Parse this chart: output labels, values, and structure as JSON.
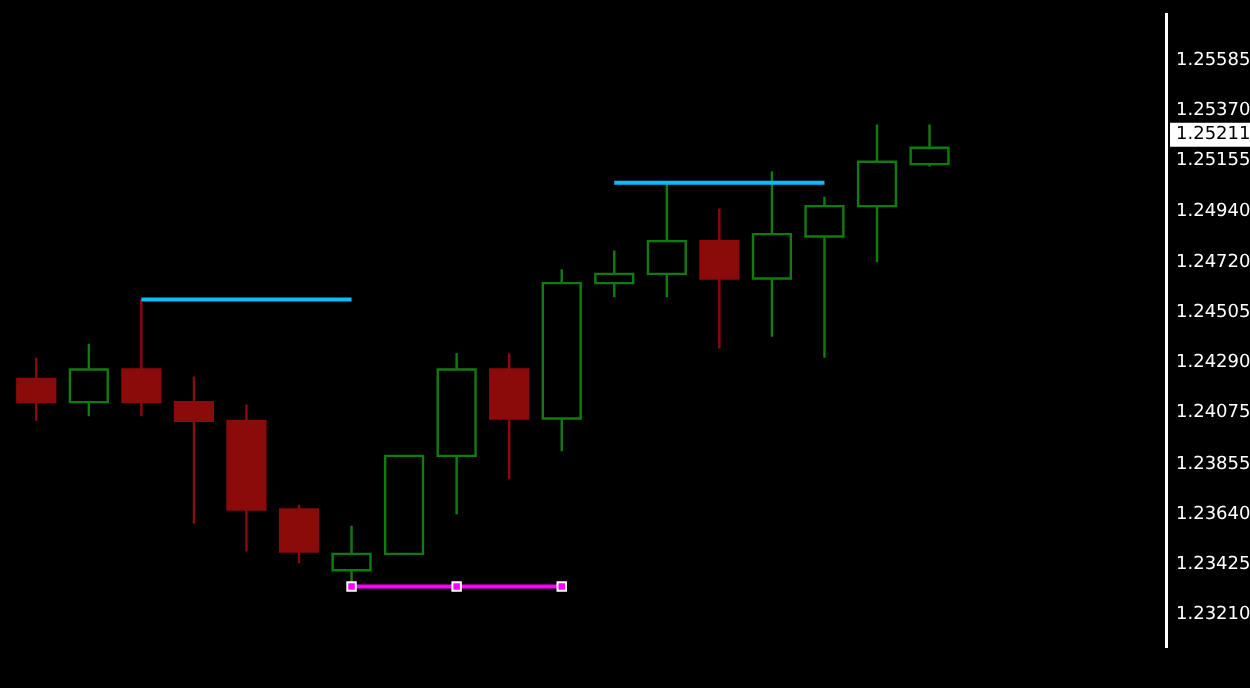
{
  "chart_data": {
    "type": "candlestick",
    "categories": [
      null,
      null,
      null,
      null,
      null,
      null,
      null,
      null,
      null,
      null,
      null,
      null,
      null,
      null,
      null,
      null,
      null,
      null,
      null,
      null,
      null,
      null
    ],
    "ohlc": [
      [
        1.2422,
        1.2431,
        1.2404,
        1.2412
      ],
      [
        1.2412,
        1.2437,
        1.2406,
        1.2426
      ],
      [
        1.2426,
        1.2456,
        1.2406,
        1.2412
      ],
      [
        1.2412,
        1.2423,
        1.236,
        1.2404
      ],
      [
        1.2404,
        1.2411,
        1.2348,
        1.2366
      ],
      [
        1.2366,
        1.2368,
        1.2343,
        1.2348
      ],
      [
        1.234,
        1.2359,
        1.2334,
        1.2347
      ],
      [
        1.2347,
        1.2389,
        1.2347,
        1.2389
      ],
      [
        1.2389,
        1.2433,
        1.2364,
        1.2426
      ],
      [
        1.2426,
        1.2433,
        1.2379,
        1.2405
      ],
      [
        1.2405,
        1.2469,
        1.2391,
        1.2463
      ],
      [
        1.2463,
        1.2477,
        1.2457,
        1.2467
      ],
      [
        1.2467,
        1.2506,
        1.2457,
        1.2481
      ],
      [
        1.2481,
        1.2495,
        1.2435,
        1.2465
      ],
      [
        1.2465,
        1.2511,
        1.244,
        1.2484
      ],
      [
        1.2483,
        1.25,
        1.2431,
        1.2496
      ],
      [
        1.2496,
        1.2531,
        1.2472,
        1.2515
      ],
      [
        1.2514,
        1.2531,
        1.2513,
        1.2521
      ],
      null,
      null,
      null,
      null
    ],
    "colors": [
      "#8b0a0a",
      "#107c10",
      "#8b0a0a",
      "#8b0a0a",
      "#8b0a0a",
      "#8b0a0a",
      "#107c10",
      "#107c10",
      "#107c10",
      "#8b0a0a",
      "#107c10",
      "#107c10",
      "#107c10",
      "#8b0a0a",
      "#107c10",
      "#107c10",
      "#107c10",
      "#107c10",
      null,
      null,
      null,
      null
    ],
    "series": [
      {
        "type": "line",
        "color": "#00bfff",
        "marker": "none",
        "values": [
          null,
          null,
          1.2456,
          1.2456,
          1.2456,
          1.2456,
          1.2456,
          null,
          null,
          null,
          null,
          null,
          null,
          null,
          null,
          null,
          null,
          null,
          null,
          null,
          null,
          null
        ]
      },
      {
        "type": "line",
        "color": "#00bfff",
        "marker": "none",
        "values": [
          null,
          null,
          null,
          null,
          null,
          null,
          null,
          null,
          null,
          null,
          null,
          1.2506,
          1.2506,
          1.2506,
          1.2506,
          1.2506,
          null,
          null,
          null,
          null,
          null,
          null
        ]
      },
      {
        "type": "line",
        "color": "#ff00ff",
        "marker": "square",
        "values": [
          null,
          null,
          null,
          null,
          null,
          null,
          1.2333,
          null,
          1.2333,
          null,
          1.2333,
          null,
          null,
          null,
          null,
          null,
          null,
          null,
          null,
          null,
          null,
          null
        ]
      }
    ],
    "ylim": [
      1.2307,
      1.2578
    ],
    "yticks": [
      {
        "value": 1.2321,
        "label": "1.23210"
      },
      {
        "value": 1.23425,
        "label": "1.23425"
      },
      {
        "value": 1.2364,
        "label": "1.23640"
      },
      {
        "value": 1.23855,
        "label": "1.23855"
      },
      {
        "value": 1.24075,
        "label": "1.24075"
      },
      {
        "value": 1.2429,
        "label": "1.24290"
      },
      {
        "value": 1.24505,
        "label": "1.24505"
      },
      {
        "value": 1.2472,
        "label": "1.24720"
      },
      {
        "value": 1.2494,
        "label": "1.24940"
      },
      {
        "value": 1.25155,
        "label": "1.25155"
      },
      {
        "value": 1.2537,
        "label": "1.25370"
      },
      {
        "value": 1.25585,
        "label": "1.25585"
      }
    ],
    "annotations": [
      "1.25211"
    ],
    "grid": false,
    "legend": false
  }
}
